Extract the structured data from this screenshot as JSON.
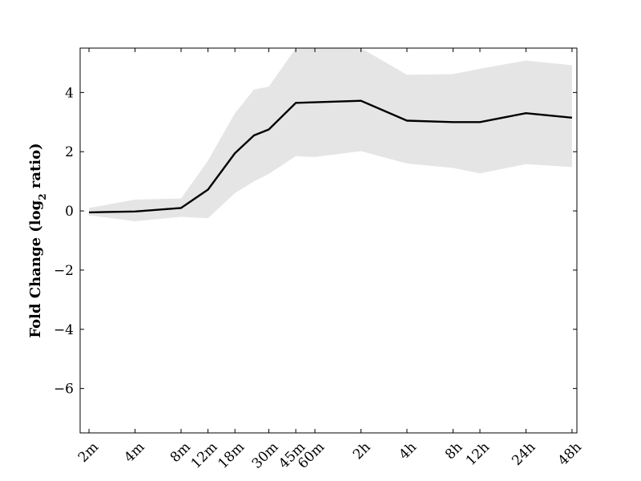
{
  "chart_data": {
    "type": "line",
    "title": "",
    "xlabel": "",
    "ylabel_main": "Fold Change (log",
    "ylabel_sub": "2",
    "ylabel_end": " ratio)",
    "ylim": [
      -7.5,
      5.5
    ],
    "yticks": [
      4,
      2,
      0,
      -2,
      -4,
      -6
    ],
    "ytick_labels": [
      "4",
      "2",
      "0",
      "−2",
      "−4",
      "−6"
    ],
    "x_categories": [
      "2m",
      "4m",
      "8m",
      "12m",
      "18m",
      "30m",
      "45m",
      "60m",
      "2h",
      "4h",
      "8h",
      "12h",
      "24h",
      "48h"
    ],
    "x_tick_positions": [
      2,
      4,
      8,
      12,
      18,
      30,
      45,
      60,
      120,
      240,
      480,
      720,
      1440,
      2880
    ],
    "x_scale": "log",
    "xlim": [
      1.75,
      3100
    ],
    "series": [
      {
        "color": "#000000",
        "x": [
          2,
          4,
          8,
          12,
          18,
          24,
          30,
          45,
          60,
          120,
          240,
          480,
          720,
          1440,
          2880
        ],
        "y": [
          -0.05,
          -0.02,
          0.1,
          0.72,
          1.95,
          2.55,
          2.75,
          3.65,
          3.67,
          3.72,
          3.05,
          3.0,
          3.0,
          3.3,
          3.15
        ]
      }
    ],
    "band": {
      "color": "#e5e5e5",
      "x": [
        2,
        4,
        8,
        12,
        18,
        24,
        30,
        45,
        60,
        120,
        240,
        480,
        720,
        1440,
        2880
      ],
      "upper": [
        0.1,
        0.38,
        0.42,
        1.7,
        3.3,
        4.1,
        4.2,
        5.5,
        5.5,
        5.5,
        4.6,
        4.62,
        4.8,
        5.08,
        4.92
      ],
      "lower": [
        -0.15,
        -0.35,
        -0.2,
        -0.25,
        0.6,
        1.0,
        1.25,
        1.85,
        1.82,
        2.02,
        1.6,
        1.45,
        1.27,
        1.58,
        1.48
      ]
    },
    "grid": false,
    "legend": "none"
  }
}
